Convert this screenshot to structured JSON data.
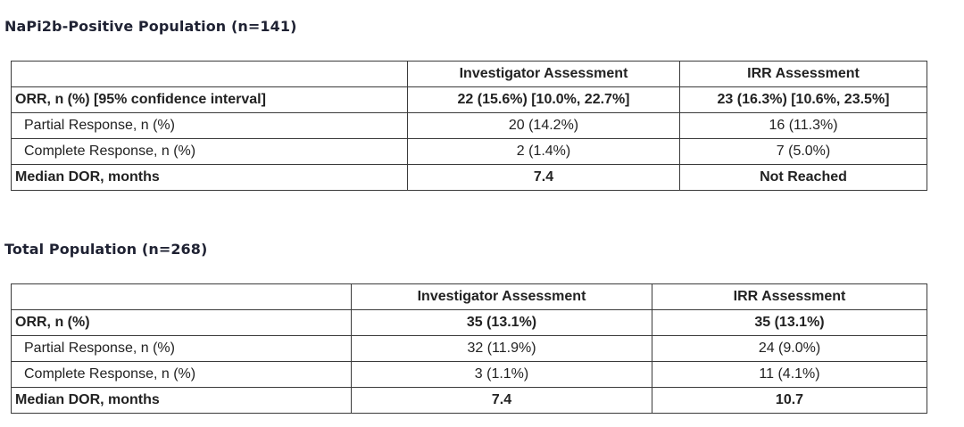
{
  "section1": {
    "title": "NaPi2b-Positive Population (n=141)",
    "columns": [
      "",
      "Investigator Assessment",
      "IRR Assessment"
    ],
    "rows": [
      {
        "label": "ORR, n (%) [95% confidence interval]",
        "investigator": "22 (15.6%) [10.0%, 22.7%]",
        "irr": "23 (16.3%) [10.6%, 23.5%]"
      },
      {
        "label": "Partial Response, n (%)",
        "investigator": "20 (14.2%)",
        "irr": "16 (11.3%)"
      },
      {
        "label": "Complete Response, n (%)",
        "investigator": "2 (1.4%)",
        "irr": "7 (5.0%)"
      },
      {
        "label": "Median DOR, months",
        "investigator": "7.4",
        "irr": "Not Reached"
      }
    ]
  },
  "section2": {
    "title": "Total Population (n=268)",
    "columns": [
      "",
      "Investigator Assessment",
      "IRR Assessment"
    ],
    "rows": [
      {
        "label": "ORR, n (%)",
        "investigator": "35 (13.1%)",
        "irr": "35 (13.1%)"
      },
      {
        "label": "Partial Response, n (%)",
        "investigator": "32 (11.9%)",
        "irr": "24 (9.0%)"
      },
      {
        "label": "Complete Response, n (%)",
        "investigator": "3 (1.1%)",
        "irr": "11 (4.1%)"
      },
      {
        "label": "Median DOR, months",
        "investigator": "7.4",
        "irr": "10.7"
      }
    ]
  }
}
